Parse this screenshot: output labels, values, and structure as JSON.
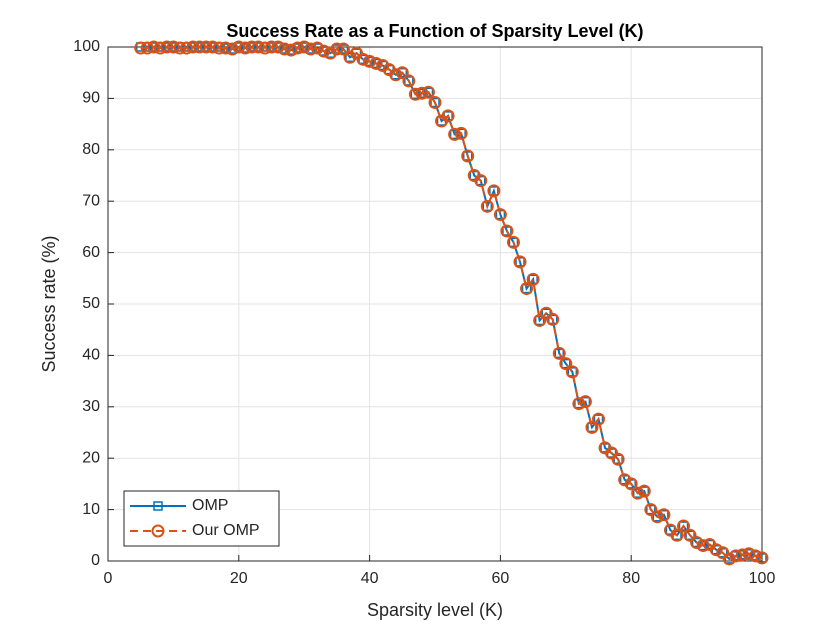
{
  "chart_data": {
    "type": "line",
    "title": "Success Rate as a Function of Sparsity Level (K)",
    "x_label": "Sparsity level (K)",
    "y_label": "Success rate (%)",
    "x": [
      5,
      6,
      7,
      8,
      9,
      10,
      11,
      12,
      13,
      14,
      15,
      16,
      17,
      18,
      19,
      20,
      21,
      22,
      23,
      24,
      25,
      26,
      27,
      28,
      29,
      30,
      31,
      32,
      33,
      34,
      35,
      36,
      37,
      38,
      39,
      40,
      41,
      42,
      43,
      44,
      45,
      46,
      47,
      48,
      49,
      50,
      51,
      52,
      53,
      54,
      55,
      56,
      57,
      58,
      59,
      60,
      61,
      62,
      63,
      64,
      65,
      66,
      67,
      68,
      69,
      70,
      71,
      72,
      73,
      74,
      75,
      76,
      77,
      78,
      79,
      80,
      81,
      82,
      83,
      84,
      85,
      86,
      87,
      88,
      89,
      90,
      91,
      92,
      93,
      94,
      95,
      96,
      97,
      98,
      99,
      100
    ],
    "series": [
      {
        "name": "OMP",
        "color": "#0072BD",
        "marker": "square",
        "dash": false,
        "values": [
          100,
          100,
          100,
          100,
          100,
          100,
          100,
          100,
          100,
          100,
          100,
          100,
          100,
          99.8,
          99.6,
          100,
          99.8,
          100,
          100,
          100,
          100,
          100,
          99.6,
          99.4,
          99.8,
          100,
          99.6,
          99.8,
          99.2,
          98.8,
          99.6,
          99.6,
          98,
          98.8,
          97.6,
          97.2,
          96.8,
          96.4,
          95.6,
          94.6,
          95,
          93.4,
          90.8,
          91,
          91.2,
          89.2,
          85.6,
          86.6,
          83,
          83.2,
          78.8,
          75,
          74,
          69,
          72,
          67.4,
          64.2,
          62,
          58.2,
          53,
          54.8,
          46.8,
          48.2,
          47,
          40.4,
          38.4,
          36.8,
          30.6,
          31,
          26,
          27.6,
          22,
          21,
          19.8,
          15.8,
          15,
          13.2,
          13.6,
          10,
          8.6,
          9,
          6,
          5,
          6.8,
          5,
          3.6,
          3,
          3.2,
          2.2,
          1.6,
          0.4,
          1,
          1.2,
          1.4,
          1,
          0.6
        ]
      },
      {
        "name": "Our OMP",
        "color": "#D95319",
        "marker": "circle",
        "dash": true,
        "values": [
          99.8,
          99.8,
          100,
          99.8,
          100,
          100,
          99.8,
          99.8,
          100,
          100,
          100,
          100,
          99.8,
          99.8,
          99.6,
          100,
          99.8,
          100,
          100,
          99.8,
          100,
          100,
          99.6,
          99.4,
          99.8,
          100,
          99.6,
          99.8,
          99.2,
          98.8,
          99.6,
          99.6,
          98,
          98.8,
          97.6,
          97.2,
          96.8,
          96.4,
          95.6,
          94.6,
          95,
          93.4,
          90.8,
          91,
          91.2,
          89.2,
          85.6,
          86.6,
          83,
          83.2,
          78.8,
          75,
          74,
          69,
          72,
          67.4,
          64.2,
          62,
          58.2,
          53,
          54.8,
          46.8,
          48.2,
          47,
          40.4,
          38.4,
          36.8,
          30.6,
          31,
          26,
          27.6,
          22,
          21,
          19.8,
          15.8,
          15,
          13.2,
          13.6,
          10,
          8.6,
          9,
          6,
          5,
          6.8,
          5,
          3.6,
          3,
          3.2,
          2.2,
          1.6,
          0.4,
          1,
          1.2,
          1.4,
          1,
          0.6
        ]
      }
    ],
    "xlim": [
      0,
      100
    ],
    "xticks": [
      0,
      20,
      40,
      60,
      80,
      100
    ],
    "ylim": [
      0,
      100
    ],
    "yticks": [
      0,
      10,
      20,
      30,
      40,
      50,
      60,
      70,
      80,
      90,
      100
    ],
    "grid": true,
    "legend": "southwest"
  }
}
